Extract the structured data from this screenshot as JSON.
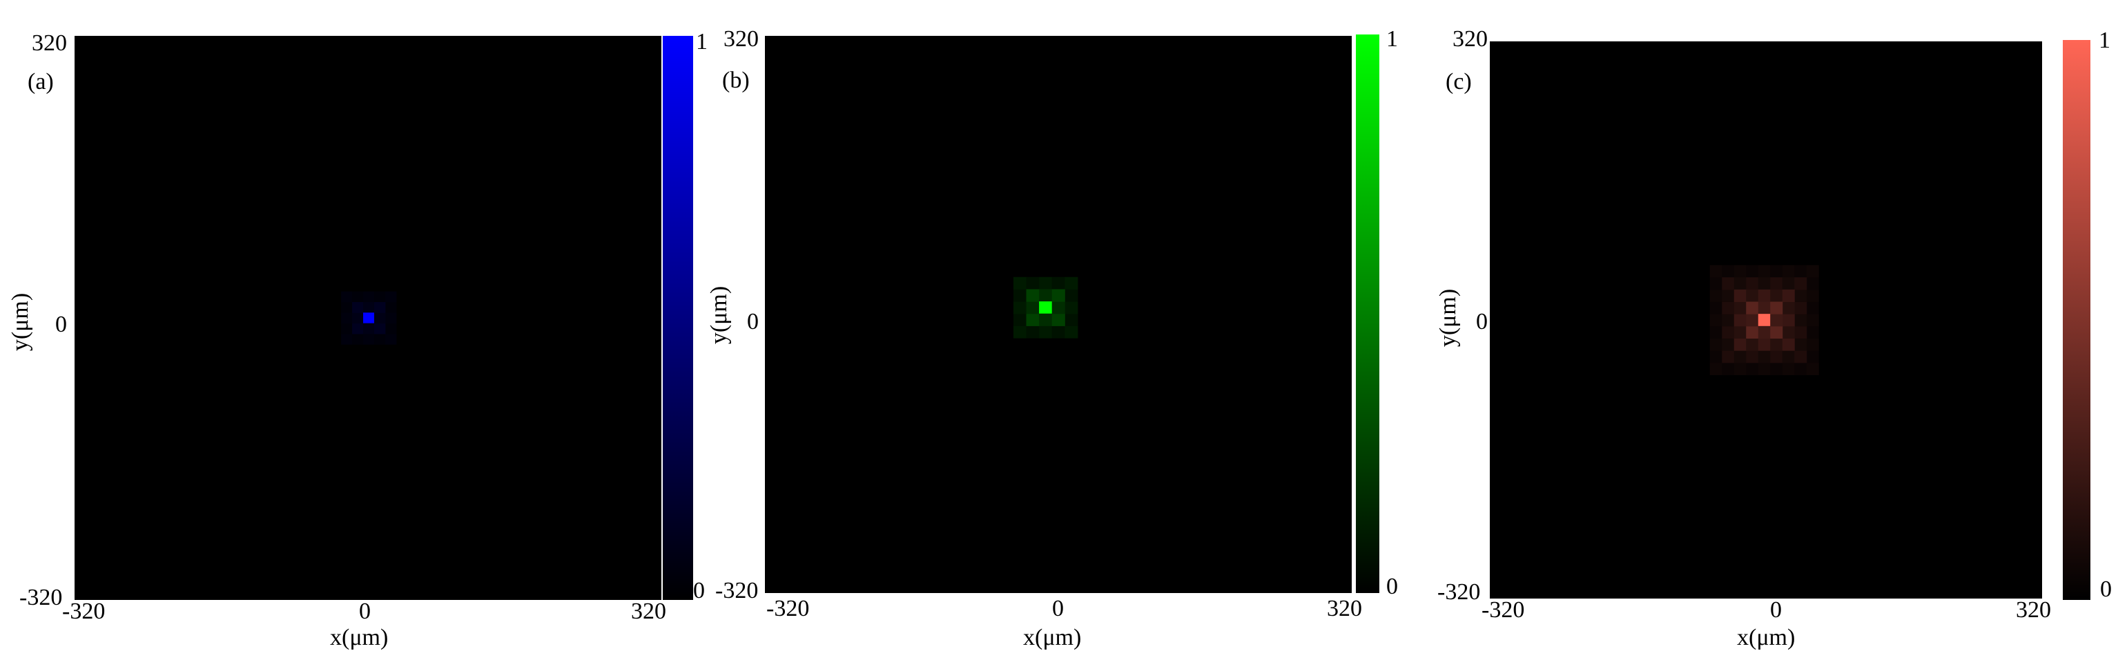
{
  "chart_data": [
    {
      "type": "heatmap",
      "panel_label": "(a)",
      "colormap": {
        "low": "#000000",
        "high": "#0000ff"
      },
      "xlabel": "x(μm)",
      "ylabel": "y(μm)",
      "xlim": [
        -320,
        320
      ],
      "ylim": [
        -320,
        320
      ],
      "x_ticks": [
        "-320",
        "0",
        "320"
      ],
      "y_ticks": [
        "320",
        "0",
        "-320"
      ],
      "colorbar": {
        "min_label": "0",
        "max_label": "1",
        "range": [
          0,
          1
        ]
      },
      "spot": {
        "x": 0,
        "y": 0,
        "peak": 1.0,
        "pixel_um": 12,
        "ring_levels": [
          0.12,
          0.05
        ]
      }
    },
    {
      "type": "heatmap",
      "panel_label": "(b)",
      "colormap": {
        "low": "#000000",
        "high": "#00ff00"
      },
      "xlabel": "x(μm)",
      "ylabel": "y(μm)",
      "xlim": [
        -320,
        320
      ],
      "ylim": [
        -320,
        320
      ],
      "x_ticks": [
        "-320",
        "0",
        "320"
      ],
      "y_ticks": [
        "320",
        "0",
        "-320"
      ],
      "colorbar": {
        "min_label": "0",
        "max_label": "1",
        "range": [
          0,
          1
        ]
      },
      "spot": {
        "x": -14,
        "y": 8,
        "peak": 1.0,
        "pixel_um": 14,
        "ring_levels": [
          0.25,
          0.1
        ]
      }
    },
    {
      "type": "heatmap",
      "panel_label": "(c)",
      "colormap": {
        "low": "#000000",
        "high": "#ff6655"
      },
      "xlabel": "x(μm)",
      "ylabel": "y(μm)",
      "xlim": [
        -320,
        320
      ],
      "ylim": [
        -320,
        320
      ],
      "x_ticks": [
        "-320",
        "0",
        "320"
      ],
      "y_ticks": [
        "320",
        "0",
        "-320"
      ],
      "colorbar": {
        "min_label": "0",
        "max_label": "1",
        "range": [
          0,
          1
        ]
      },
      "spot": {
        "x": -2,
        "y": 0,
        "peak": 1.0,
        "pixel_um": 14,
        "ring_levels": [
          0.35,
          0.22,
          0.12,
          0.06
        ]
      }
    }
  ]
}
